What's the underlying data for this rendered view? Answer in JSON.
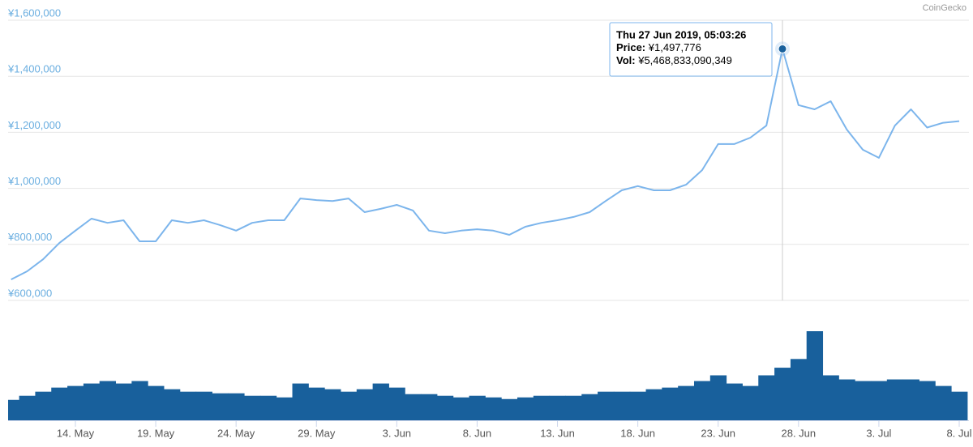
{
  "chart_data": {
    "type": "line",
    "watermark": "CoinGecko",
    "categories": [
      null,
      null,
      null,
      null,
      "14. May",
      null,
      null,
      null,
      null,
      "19. May",
      null,
      null,
      null,
      null,
      "24. May",
      null,
      null,
      null,
      null,
      "29. May",
      null,
      null,
      null,
      null,
      "3. Jun",
      null,
      null,
      null,
      null,
      "8. Jun",
      null,
      null,
      null,
      null,
      "13. Jun",
      null,
      null,
      null,
      null,
      "18. Jun",
      null,
      null,
      null,
      null,
      "23. Jun",
      null,
      null,
      null,
      null,
      "28. Jun",
      null,
      null,
      null,
      null,
      "3. Jul",
      null,
      null,
      null,
      null,
      "8. Jul"
    ],
    "series": [
      {
        "color": "#7cb5ec",
        "values": [
          675000,
          704000,
          747000,
          805000,
          849000,
          892000,
          877000,
          886000,
          811000,
          811000,
          886000,
          877000,
          886000,
          869000,
          849000,
          877000,
          886000,
          886000,
          964000,
          958000,
          955000,
          964000,
          915000,
          927000,
          941000,
          921000,
          849000,
          840000,
          849000,
          854000,
          849000,
          834000,
          863000,
          877000,
          886000,
          898000,
          915000,
          955000,
          993000,
          1008000,
          993000,
          993000,
          1013000,
          1065000,
          1158000,
          1158000,
          1181000,
          1224000,
          1497776,
          1297000,
          1282000,
          1311000,
          1210000,
          1138000,
          1109000,
          1224000,
          1282000,
          1217000,
          1234000,
          1240000
        ]
      },
      {
        "type": "bar",
        "axis": "y2",
        "color": "#18609c",
        "values": [
          2125000000000,
          2550000000000,
          2975000000000,
          3400000000000,
          3570000000000,
          3825000000000,
          4080000000000,
          3825000000000,
          4080000000000,
          3570000000000,
          3230000000000,
          2975000000000,
          2975000000000,
          2805000000000,
          2805000000000,
          2550000000000,
          2550000000000,
          2380000000000,
          3825000000000,
          3400000000000,
          3230000000000,
          2975000000000,
          3230000000000,
          3825000000000,
          3400000000000,
          2720000000000,
          2720000000000,
          2550000000000,
          2380000000000,
          2550000000000,
          2380000000000,
          2210000000000,
          2380000000000,
          2550000000000,
          2550000000000,
          2550000000000,
          2720000000000,
          2975000000000,
          2975000000000,
          2975000000000,
          3230000000000,
          3400000000000,
          3570000000000,
          4080000000000,
          4675000000000,
          3825000000000,
          3570000000000,
          4675000000000,
          5468833090349,
          6375000000000,
          9265000000000,
          4675000000000,
          4250000000000,
          4080000000000,
          4080000000000,
          4250000000000,
          4250000000000,
          4080000000000,
          3570000000000,
          2975000000000
        ]
      }
    ],
    "ylim": [
      600000,
      1600000
    ],
    "yticks": [
      {
        "value": 600000,
        "label": "¥600,000"
      },
      {
        "value": 800000,
        "label": "¥800,000"
      },
      {
        "value": 1000000,
        "label": "¥1,000,000"
      },
      {
        "value": 1200000,
        "label": "¥1,200,000"
      },
      {
        "value": 1400000,
        "label": "¥1,400,000"
      },
      {
        "value": 1600000,
        "label": "¥1,600,000"
      }
    ],
    "grid": true,
    "tooltip": {
      "title": "Thu 27 Jun 2019, 05:03:26",
      "rows": [
        {
          "label": "Price:",
          "value": "¥1,497,776"
        },
        {
          "label": "Vol:",
          "value": "¥5,468,833,090,349"
        }
      ]
    }
  }
}
